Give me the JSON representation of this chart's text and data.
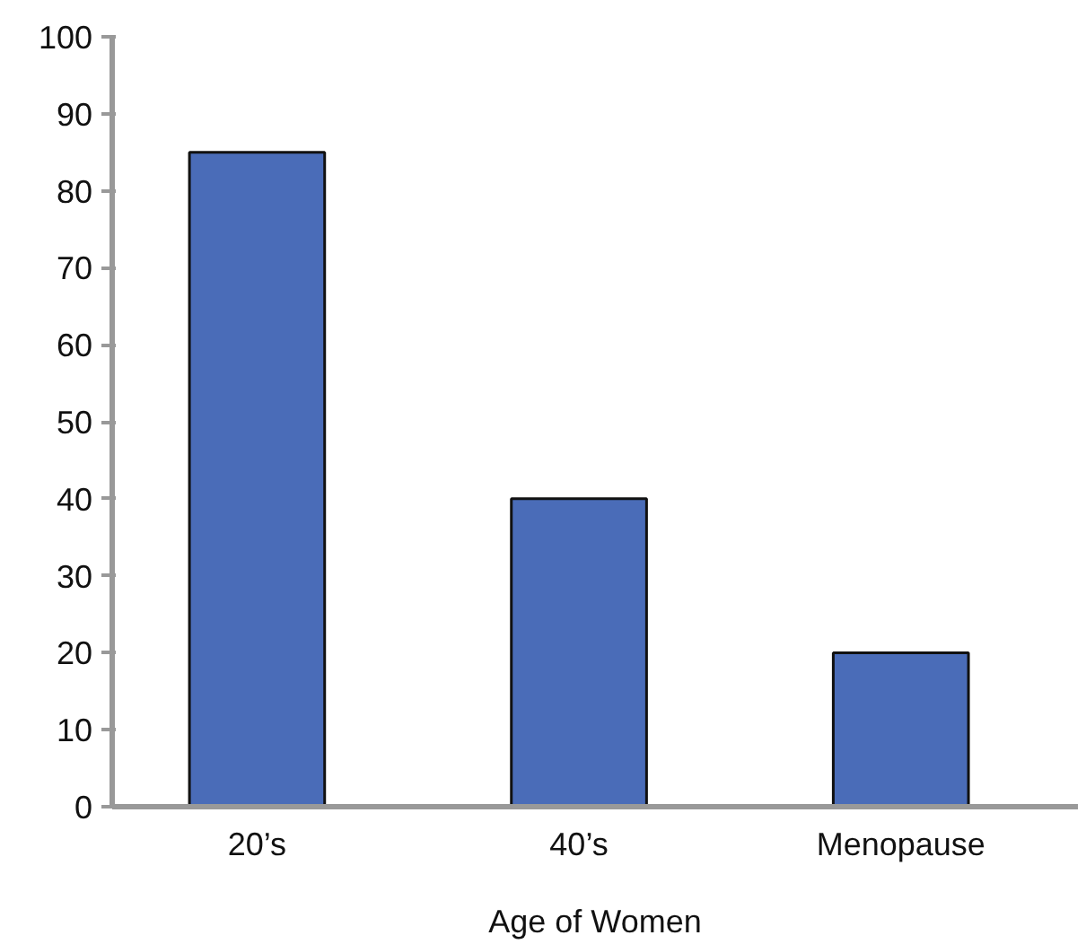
{
  "chart_data": {
    "type": "bar",
    "xlabel": "Age of Women",
    "categories": [
      "20’s",
      "40’s",
      "Menopause"
    ],
    "values": [
      85,
      40,
      20
    ],
    "color": "#4a6cb8",
    "ylim": [
      0,
      100
    ],
    "yticks": [
      0,
      10,
      20,
      30,
      40,
      50,
      60,
      70,
      80,
      90,
      100
    ],
    "grid": false
  }
}
